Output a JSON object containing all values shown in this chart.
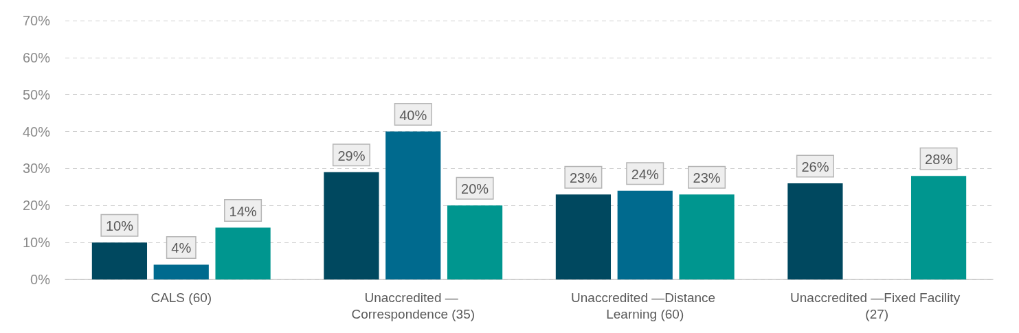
{
  "chart_data": {
    "type": "bar",
    "categories": [
      "CALS (60)",
      "Unaccredited — Correspondence (35)",
      "Unaccredited —Distance Learning (60)",
      "Unaccredited —Fixed Facility (27)"
    ],
    "series": [
      {
        "color": "#00485f",
        "values": [
          10,
          29,
          23,
          26
        ],
        "value_labels": [
          "10%",
          "29%",
          "23%",
          "26%"
        ]
      },
      {
        "color": "#006a8e",
        "values": [
          4,
          40,
          24,
          null
        ],
        "value_labels": [
          "4%",
          "40%",
          "24%",
          null
        ]
      },
      {
        "color": "#00968f",
        "values": [
          14,
          20,
          23,
          28
        ],
        "value_labels": [
          "14%",
          "20%",
          "23%",
          "28%"
        ]
      }
    ],
    "ylim": [
      0,
      70
    ],
    "yticks": [
      {
        "value": 0,
        "label": "0%"
      },
      {
        "value": 10,
        "label": "10%"
      },
      {
        "value": 20,
        "label": "20%"
      },
      {
        "value": 30,
        "label": "30%"
      },
      {
        "value": 40,
        "label": "40%"
      },
      {
        "value": 50,
        "label": "50%"
      },
      {
        "value": 60,
        "label": "60%"
      },
      {
        "value": 70,
        "label": "70%"
      }
    ],
    "grid": "y"
  }
}
